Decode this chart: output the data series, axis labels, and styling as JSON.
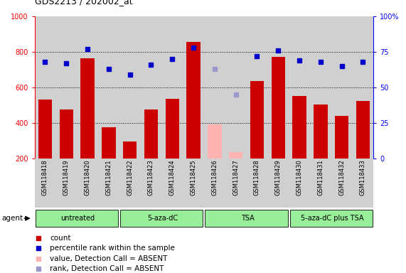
{
  "title": "GDS2213 / 202002_at",
  "samples": [
    "GSM118418",
    "GSM118419",
    "GSM118420",
    "GSM118421",
    "GSM118422",
    "GSM118423",
    "GSM118424",
    "GSM118425",
    "GSM118426",
    "GSM118427",
    "GSM118428",
    "GSM118429",
    "GSM118430",
    "GSM118431",
    "GSM118432",
    "GSM118433"
  ],
  "values": [
    530,
    475,
    765,
    375,
    295,
    475,
    535,
    855,
    null,
    null,
    635,
    770,
    550,
    505,
    440,
    525
  ],
  "absent_value": [
    null,
    null,
    null,
    null,
    null,
    null,
    null,
    null,
    390,
    235,
    null,
    null,
    null,
    null,
    null,
    null
  ],
  "ranks": [
    68,
    67,
    77,
    63,
    59,
    66,
    70,
    78,
    null,
    null,
    72,
    76,
    69,
    68,
    65,
    68
  ],
  "absent_rank": [
    null,
    null,
    null,
    null,
    null,
    null,
    null,
    null,
    63,
    45,
    null,
    null,
    null,
    null,
    null,
    null
  ],
  "groups": [
    {
      "label": "untreated",
      "start": 0,
      "end": 4
    },
    {
      "label": "5-aza-dC",
      "start": 4,
      "end": 8
    },
    {
      "label": "TSA",
      "start": 8,
      "end": 12
    },
    {
      "label": "5-aza-dC plus TSA",
      "start": 12,
      "end": 16
    }
  ],
  "ylim_left": [
    200,
    1000
  ],
  "ylim_right": [
    0,
    100
  ],
  "y_ticks_left": [
    200,
    400,
    600,
    800,
    1000
  ],
  "y_ticks_right": [
    0,
    25,
    50,
    75,
    100
  ],
  "bar_color": "#cc0000",
  "absent_bar_color": "#ffb3b3",
  "rank_color": "#0000cc",
  "absent_rank_color": "#9999cc",
  "group_color": "#99ee99",
  "bg_color": "#d0d0d0",
  "plot_bg": "#ffffff",
  "grid_color": "#000000",
  "grid_lines": [
    400,
    600,
    800
  ]
}
